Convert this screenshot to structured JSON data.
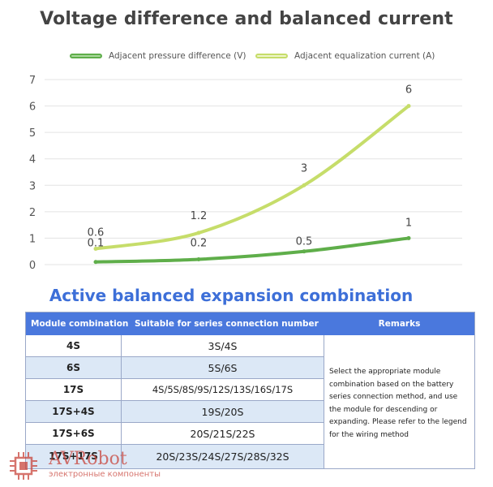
{
  "chart_data": {
    "type": "line",
    "title": "Voltage difference and balanced current",
    "categories": [
      "",
      "",
      "",
      ""
    ],
    "series": [
      {
        "name": "Adjacent pressure difference (V)",
        "color": "#5fae4a",
        "values": [
          0.1,
          0.2,
          0.5,
          1
        ],
        "labels": [
          "0.1",
          "0.2",
          "0.5",
          "1"
        ]
      },
      {
        "name": "Adjacent equalization current (A)",
        "color": "#c6dd6a",
        "values": [
          0.6,
          1.2,
          3,
          6
        ],
        "labels": [
          "0.6",
          "1.2",
          "3",
          "6"
        ]
      }
    ],
    "ylim": [
      0,
      7
    ],
    "yticks": [
      "0",
      "1",
      "2",
      "3",
      "4",
      "5",
      "6",
      "7"
    ],
    "grid": true,
    "legend": "top"
  },
  "table": {
    "title": "Active balanced expansion combination",
    "title_color": "#3d6fd8",
    "header_color": "#4a78dd",
    "header": [
      "Module combination",
      "Suitable for series connection number",
      "Remarks"
    ],
    "rows": [
      {
        "module": "4S",
        "suitable": "3S/4S",
        "bg": "#ffffff"
      },
      {
        "module": "6S",
        "suitable": "5S/6S",
        "bg": "#dce8f6"
      },
      {
        "module": "17S",
        "suitable": "4S/5S/8S/9S/12S/13S/16S/17S",
        "bg": "#ffffff"
      },
      {
        "module": "17S+4S",
        "suitable": "19S/20S",
        "bg": "#dce8f6"
      },
      {
        "module": "17S+6S",
        "suitable": "20S/21S/22S",
        "bg": "#ffffff"
      },
      {
        "module": "17S+17S",
        "suitable": "20S/23S/24S/27S/28S/32S",
        "bg": "#dce8f6"
      }
    ],
    "remarks": "Select the appropriate module combination based on the battery series connection method, and use the module for descending or expanding. Please refer to the legend for the wiring method"
  },
  "watermark": {
    "brand": "AVRobot",
    "subtitle": "электронные компоненты",
    "color": "#c9463d",
    "icon": "chip-icon"
  }
}
